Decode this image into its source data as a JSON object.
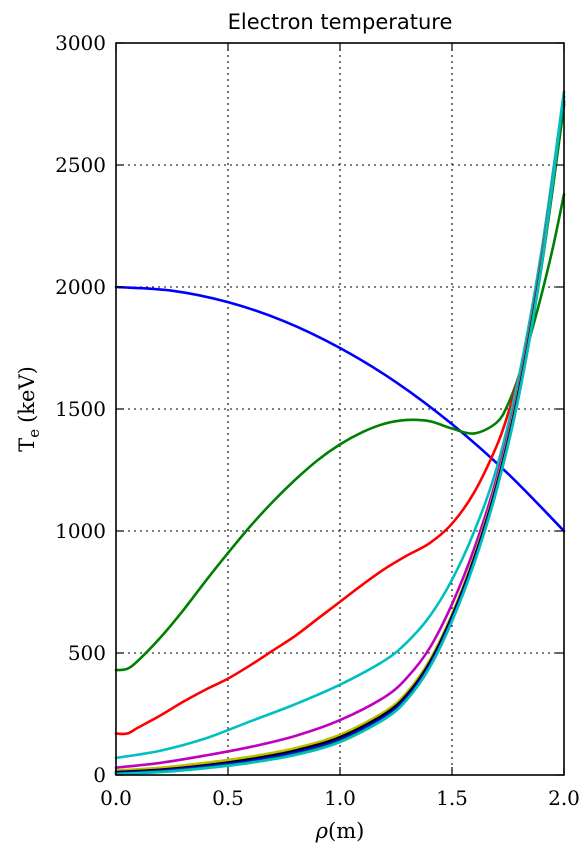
{
  "chart_data": {
    "type": "line",
    "title": "Electron temperature",
    "xlabel_main": "ρ",
    "xlabel_unit": "(m)",
    "ylabel_main": "T",
    "ylabel_sub": "e",
    "ylabel_unit": "(keV)",
    "xlim": [
      0,
      2
    ],
    "ylim": [
      0,
      3000
    ],
    "xticks": [
      "0.0",
      "0.5",
      "1.0",
      "1.5",
      "2.0"
    ],
    "yticks": [
      "0",
      "500",
      "1000",
      "1500",
      "2000",
      "2500",
      "3000"
    ],
    "grid": true,
    "series": [
      {
        "color": "#0000ff",
        "x": [
          0,
          0.25,
          0.5,
          0.75,
          1.0,
          1.25,
          1.5,
          1.75,
          2.0
        ],
        "values": [
          2000,
          1985,
          1938,
          1860,
          1750,
          1610,
          1438,
          1235,
          1000
        ]
      },
      {
        "color": "#008000",
        "x": [
          0,
          0.05,
          0.1,
          0.2,
          0.3,
          0.4,
          0.5,
          0.6,
          0.7,
          0.8,
          0.9,
          1.0,
          1.1,
          1.2,
          1.3,
          1.4,
          1.5,
          1.6,
          1.7,
          1.75,
          1.8,
          1.85,
          1.9,
          1.95,
          2.0
        ],
        "values": [
          430,
          435,
          470,
          565,
          675,
          795,
          910,
          1020,
          1120,
          1210,
          1290,
          1355,
          1405,
          1440,
          1455,
          1450,
          1420,
          1400,
          1445,
          1520,
          1640,
          1800,
          1970,
          2160,
          2380
        ]
      },
      {
        "color": "#ff0000",
        "x": [
          0,
          0.05,
          0.1,
          0.2,
          0.3,
          0.4,
          0.5,
          0.6,
          0.7,
          0.8,
          0.9,
          1.0,
          1.1,
          1.2,
          1.3,
          1.4,
          1.5,
          1.6,
          1.7,
          1.75,
          1.8
        ],
        "values": [
          170,
          170,
          195,
          245,
          300,
          350,
          395,
          450,
          510,
          570,
          640,
          710,
          780,
          845,
          900,
          950,
          1030,
          1160,
          1350,
          1480,
          1640
        ]
      },
      {
        "color": "#00bfbf",
        "x": [
          0,
          0.2,
          0.4,
          0.6,
          0.8,
          1.0,
          1.2,
          1.3,
          1.4,
          1.5,
          1.6,
          1.7,
          1.8,
          1.9,
          2.0
        ],
        "values": [
          70,
          100,
          150,
          220,
          290,
          370,
          470,
          545,
          650,
          800,
          1000,
          1260,
          1640,
          2150,
          2800
        ]
      },
      {
        "color": "#bf00bf",
        "x": [
          0,
          0.2,
          0.4,
          0.6,
          0.8,
          1.0,
          1.2,
          1.3,
          1.4,
          1.5,
          1.6,
          1.7,
          1.8,
          1.9,
          2.0
        ],
        "values": [
          30,
          50,
          80,
          115,
          160,
          225,
          320,
          400,
          520,
          700,
          930,
          1220,
          1600,
          2120,
          2780
        ]
      },
      {
        "color": "#bfbf00",
        "x": [
          0,
          0.2,
          0.4,
          0.6,
          0.8,
          1.0,
          1.2,
          1.3,
          1.4,
          1.5,
          1.6,
          1.7,
          1.8,
          1.9,
          2.0
        ],
        "values": [
          18,
          30,
          50,
          75,
          110,
          165,
          260,
          340,
          470,
          660,
          900,
          1200,
          1590,
          2110,
          2770
        ]
      },
      {
        "color": "#000000",
        "x": [
          0,
          0.2,
          0.4,
          0.6,
          0.8,
          1.0,
          1.2,
          1.3,
          1.4,
          1.5,
          1.6,
          1.7,
          1.8,
          1.9,
          2.0
        ],
        "values": [
          12,
          22,
          40,
          65,
          100,
          155,
          250,
          330,
          460,
          650,
          890,
          1190,
          1580,
          2100,
          2760
        ]
      },
      {
        "color": "#0000ff",
        "x": [
          0,
          0.2,
          0.4,
          0.6,
          0.8,
          1.0,
          1.2,
          1.3,
          1.4,
          1.5,
          1.6,
          1.7,
          1.8,
          1.9,
          2.0
        ],
        "values": [
          8,
          18,
          35,
          58,
          92,
          145,
          240,
          320,
          450,
          640,
          880,
          1180,
          1570,
          2090,
          2750
        ]
      },
      {
        "color": "#008000",
        "x": [
          0,
          0.2,
          0.4,
          0.6,
          0.8,
          1.0,
          1.2,
          1.3,
          1.4,
          1.5,
          1.6,
          1.7,
          1.8,
          1.9,
          2.0
        ],
        "values": [
          5,
          14,
          30,
          52,
          85,
          138,
          232,
          312,
          442,
          632,
          872,
          1172,
          1562,
          2085,
          2745
        ]
      },
      {
        "color": "#00bfbf",
        "x": [
          0,
          0.2,
          0.4,
          0.6,
          0.8,
          1.0,
          1.2,
          1.3,
          1.4,
          1.5,
          1.6,
          1.7,
          1.8,
          1.9,
          2.0
        ],
        "values": [
          4,
          12,
          28,
          50,
          82,
          135,
          230,
          310,
          440,
          630,
          870,
          1170,
          1560,
          2090,
          2800
        ]
      }
    ]
  }
}
